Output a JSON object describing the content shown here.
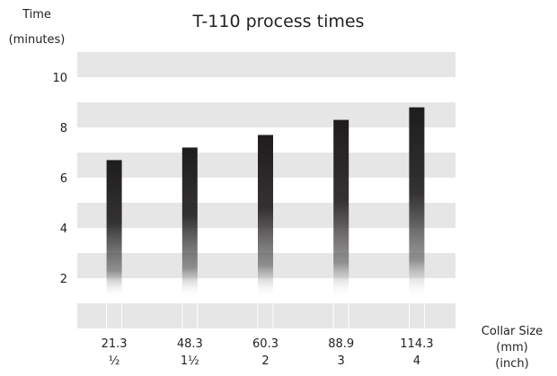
{
  "chart_data": {
    "type": "bar",
    "title": "T-110 process times",
    "ylabel_line1": "Time",
    "ylabel_line2": "(minutes)",
    "xlabel_line1": "Collar Size",
    "xlabel_line2": "(mm)",
    "xlabel_line3": "(inch)",
    "categories_mm": [
      "21.3",
      "48.3",
      "60.3",
      "88.9",
      "114.3"
    ],
    "categories_inch": [
      "½",
      "1½",
      "2",
      "3",
      "4"
    ],
    "values": [
      6.7,
      7.2,
      7.7,
      8.3,
      8.8
    ],
    "yticks": [
      "2",
      "4",
      "6",
      "8",
      "10"
    ],
    "ylim": [
      0,
      11
    ],
    "grid": "horizontal bands",
    "colors": {
      "bar_top": "#1f1c1e",
      "band": "#e6e6e6"
    }
  }
}
